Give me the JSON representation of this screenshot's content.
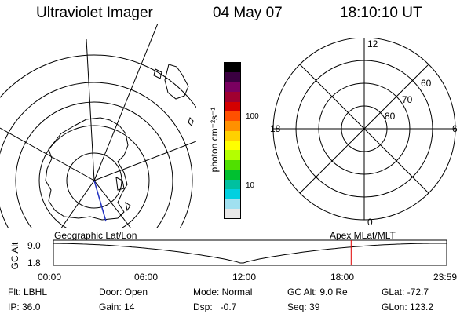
{
  "header": {
    "instrument": "Ultraviolet Imager",
    "date": "04 May 07",
    "time": "18:10:10 UT"
  },
  "colorbar": {
    "unit_label": "photon cm⁻²s⁻¹",
    "ticks": [
      "100",
      "10"
    ],
    "colors": [
      "#000000",
      "#3a0040",
      "#7a0060",
      "#a00030",
      "#d40000",
      "#ff5000",
      "#ff9000",
      "#ffd000",
      "#ffff00",
      "#b4ff00",
      "#50e000",
      "#00c030",
      "#00c0a0",
      "#00d0e0",
      "#a0e0f0",
      "#e8e8e8"
    ]
  },
  "polar_plot": {
    "mlt_labels": [
      "12",
      "18",
      "6",
      "0"
    ],
    "lat_labels": [
      "60",
      "70",
      "80"
    ]
  },
  "altitude_strip": {
    "ylabel": "GC Alt",
    "y_ticks": [
      "9.0",
      "1.8"
    ],
    "left_title": "Geographic Lat/Lon",
    "right_title": "Apex MLat/MLT",
    "x_ticks": [
      "00:00",
      "06:00",
      "12:00",
      "18:00",
      "23:59"
    ],
    "marker_time_hours": 18.17,
    "marker_color": "#e00000"
  },
  "info": {
    "col1": [
      "Flt: LBHL",
      "IP: 36.0"
    ],
    "col2": [
      "Door: Open",
      "Gain: 14"
    ],
    "col3": [
      "Mode: Normal",
      "Dsp:   -0.7"
    ],
    "col4": [
      "GC Alt: 9.0 Re",
      "Seq: 39"
    ],
    "col5": [
      "GLat: -72.7",
      "GLon: 123.2"
    ]
  }
}
